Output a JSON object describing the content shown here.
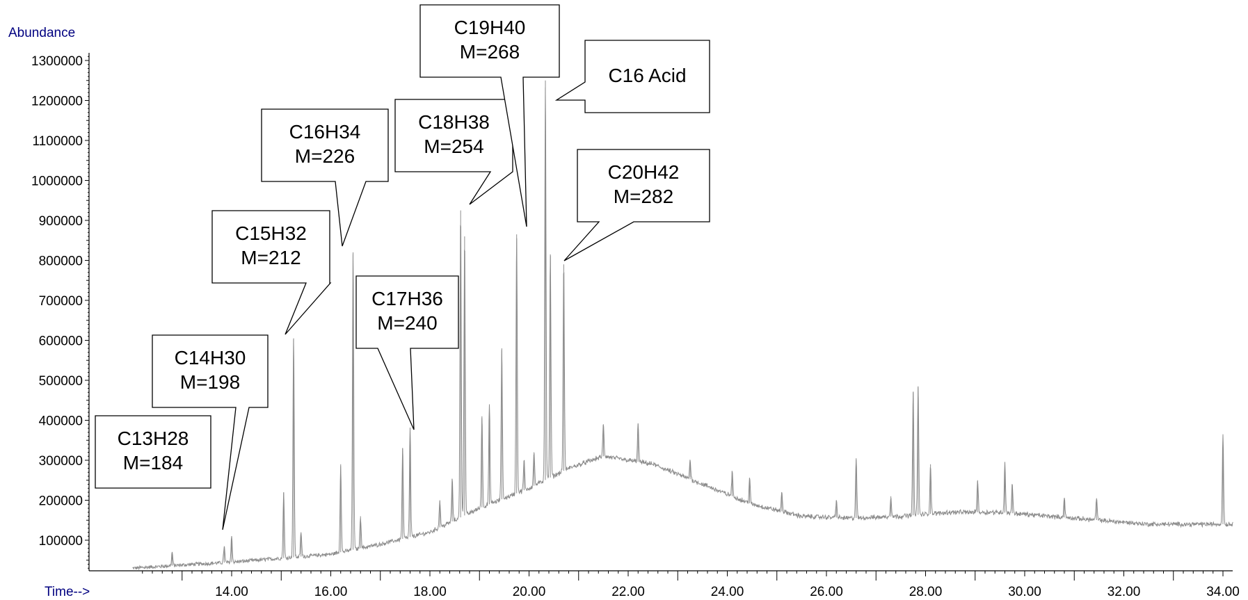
{
  "chart_data": {
    "type": "line",
    "ylabel": "Abundance",
    "xlabel": "Time-->",
    "xlim": [
      12.0,
      34.2
    ],
    "ylim": [
      20000,
      1310000
    ],
    "x_ticks": [
      "14.00",
      "16.00",
      "18.00",
      "20.00",
      "22.00",
      "24.00",
      "26.00",
      "28.00",
      "30.00",
      "32.00",
      "34.00"
    ],
    "y_ticks": [
      "100000",
      "200000",
      "300000",
      "400000",
      "500000",
      "600000",
      "700000",
      "800000",
      "900000",
      "1000000",
      "1100000",
      "1200000",
      "1300000"
    ],
    "baseline": [
      [
        12.0,
        30000
      ],
      [
        13.0,
        38000
      ],
      [
        14.0,
        45000
      ],
      [
        15.0,
        55000
      ],
      [
        16.0,
        65000
      ],
      [
        17.0,
        90000
      ],
      [
        18.0,
        120000
      ],
      [
        19.0,
        180000
      ],
      [
        20.0,
        230000
      ],
      [
        20.8,
        280000
      ],
      [
        21.5,
        310000
      ],
      [
        22.5,
        290000
      ],
      [
        23.5,
        240000
      ],
      [
        24.5,
        190000
      ],
      [
        25.5,
        160000
      ],
      [
        26.5,
        155000
      ],
      [
        27.5,
        160000
      ],
      [
        28.5,
        170000
      ],
      [
        29.5,
        170000
      ],
      [
        30.5,
        160000
      ],
      [
        31.5,
        150000
      ],
      [
        32.5,
        140000
      ],
      [
        33.5,
        140000
      ],
      [
        34.2,
        140000
      ]
    ],
    "peaks": [
      {
        "x": 12.8,
        "y": 70000
      },
      {
        "x": 13.85,
        "y": 85000
      },
      {
        "x": 14.0,
        "y": 110000
      },
      {
        "x": 15.05,
        "y": 220000
      },
      {
        "x": 15.25,
        "y": 605000
      },
      {
        "x": 15.4,
        "y": 120000
      },
      {
        "x": 16.2,
        "y": 290000
      },
      {
        "x": 16.45,
        "y": 820000
      },
      {
        "x": 16.6,
        "y": 160000
      },
      {
        "x": 17.45,
        "y": 330000
      },
      {
        "x": 17.6,
        "y": 380000
      },
      {
        "x": 18.2,
        "y": 200000
      },
      {
        "x": 18.45,
        "y": 250000
      },
      {
        "x": 18.62,
        "y": 925000
      },
      {
        "x": 18.7,
        "y": 860000
      },
      {
        "x": 19.05,
        "y": 410000
      },
      {
        "x": 19.2,
        "y": 440000
      },
      {
        "x": 19.45,
        "y": 580000
      },
      {
        "x": 19.75,
        "y": 865000
      },
      {
        "x": 19.9,
        "y": 300000
      },
      {
        "x": 20.1,
        "y": 320000
      },
      {
        "x": 20.33,
        "y": 1250000
      },
      {
        "x": 20.43,
        "y": 815000
      },
      {
        "x": 20.7,
        "y": 790000
      },
      {
        "x": 21.5,
        "y": 390000
      },
      {
        "x": 22.2,
        "y": 390000
      },
      {
        "x": 23.25,
        "y": 300000
      },
      {
        "x": 24.1,
        "y": 270000
      },
      {
        "x": 24.45,
        "y": 255000
      },
      {
        "x": 25.1,
        "y": 220000
      },
      {
        "x": 26.2,
        "y": 200000
      },
      {
        "x": 26.6,
        "y": 305000
      },
      {
        "x": 27.3,
        "y": 210000
      },
      {
        "x": 27.75,
        "y": 470000
      },
      {
        "x": 27.85,
        "y": 485000
      },
      {
        "x": 28.1,
        "y": 290000
      },
      {
        "x": 29.05,
        "y": 250000
      },
      {
        "x": 29.6,
        "y": 295000
      },
      {
        "x": 29.75,
        "y": 240000
      },
      {
        "x": 30.8,
        "y": 205000
      },
      {
        "x": 31.45,
        "y": 205000
      },
      {
        "x": 34.0,
        "y": 365000
      }
    ],
    "annotations": [
      {
        "line1": "C13H28",
        "line2": "M=184",
        "peak_x": 12.8,
        "peak_y": 70000
      },
      {
        "line1": "C14H30",
        "line2": "M=198",
        "peak_x": 13.85,
        "peak_y": 115000
      },
      {
        "line1": "C15H32",
        "line2": "M=212",
        "peak_x": 15.1,
        "peak_y": 610000
      },
      {
        "line1": "C16H34",
        "line2": "M=226",
        "peak_x": 16.25,
        "peak_y": 835000
      },
      {
        "line1": "C17H36",
        "line2": "M=240",
        "peak_x": 17.65,
        "peak_y": 375000
      },
      {
        "line1": "C18H38",
        "line2": "M=254",
        "peak_x": 18.75,
        "peak_y": 935000
      },
      {
        "line1": "C19H40",
        "line2": "M=268",
        "peak_x": 19.9,
        "peak_y": 885000
      },
      {
        "line1": "C16 Acid",
        "line2": "",
        "peak_x": 20.5,
        "peak_y": 1195000
      },
      {
        "line1": "C20H42",
        "line2": "M=282",
        "peak_x": 20.7,
        "peak_y": 795000
      }
    ]
  }
}
